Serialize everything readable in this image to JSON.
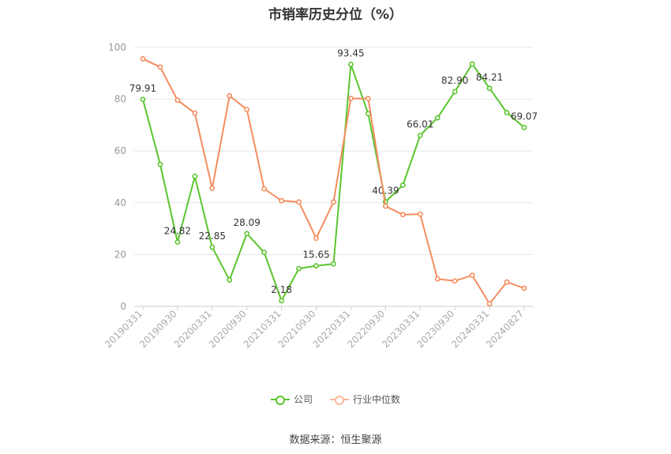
{
  "chart_data": {
    "type": "line",
    "title": "市销率历史分位（%）",
    "source": "数据来源：恒生聚源",
    "categories": [
      "20190331",
      "20190630",
      "20190930",
      "20191231",
      "20200331",
      "20200630",
      "20200930",
      "20201231",
      "20210331",
      "20210630",
      "20210930",
      "20211231",
      "20220331",
      "20220630",
      "20220930",
      "20221231",
      "20230331",
      "20230630",
      "20230930",
      "20231231",
      "20240331",
      "20240630",
      "20240827"
    ],
    "tick_labels": [
      "20190331",
      "20190930",
      "20200331",
      "20200930",
      "20210331",
      "20210930",
      "20220331",
      "20220930",
      "20230331",
      "20230930",
      "20240331",
      "20240827"
    ],
    "y_ticks": [
      "0",
      "20",
      "40",
      "60",
      "80",
      "100"
    ],
    "ylim": [
      0,
      100
    ],
    "grid": true,
    "legend_position": "bottom",
    "series": [
      {
        "name": "公司",
        "color": "#5ac52e",
        "values": [
          79.91,
          54.8,
          24.82,
          50.2,
          22.85,
          10.2,
          28.09,
          20.8,
          2.18,
          14.6,
          15.65,
          16.4,
          93.45,
          74.4,
          40.39,
          46.8,
          66.01,
          72.8,
          82.9,
          93.6,
          84.21,
          74.8,
          69.07
        ],
        "labels": {
          "0": "79.91",
          "2": "24.82",
          "4": "22.85",
          "6": "28.09",
          "8": "2.18",
          "10": "15.65",
          "12": "93.45",
          "14": "40.39",
          "16": "66.01",
          "18": "82.90",
          "20": "84.21",
          "22": "69.07"
        }
      },
      {
        "name": "行业中位数",
        "color": "#f58d5f",
        "values": [
          95.6,
          92.4,
          79.6,
          74.6,
          45.6,
          81.3,
          76.0,
          45.4,
          40.8,
          40.3,
          26.3,
          40.3,
          80.3,
          80.2,
          38.7,
          35.4,
          35.6,
          10.6,
          9.8,
          12.0,
          1.0,
          9.4,
          7.0
        ]
      }
    ]
  }
}
